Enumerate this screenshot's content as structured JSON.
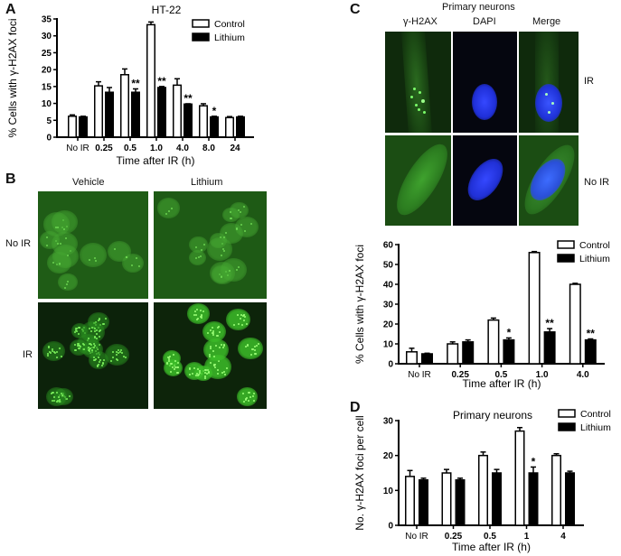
{
  "panels": {
    "A": {
      "letter": "A"
    },
    "B": {
      "letter": "B",
      "col_labels": [
        "Vehicle",
        "Lithium"
      ],
      "row_labels": [
        "No IR",
        "IR"
      ]
    },
    "C": {
      "letter": "C",
      "title": "Primary neurons",
      "col_labels": [
        "γ-H2AX",
        "DAPI",
        "Merge"
      ],
      "row_labels": [
        "IR",
        "No IR"
      ]
    },
    "D": {
      "letter": "D"
    }
  },
  "colors": {
    "control_fill": "#ffffff",
    "lithium_fill": "#000000",
    "gfp_green": "#2e8a1e",
    "dapi_blue": "#1a2fff",
    "micro_bg_green": "#1d5a14",
    "micro_bg_dark": "#0b2108"
  },
  "chart_data": [
    {
      "id": "A",
      "type": "bar",
      "title": "HT-22",
      "xlabel": "Time after IR (h)",
      "ylabel": "% Cells with γ-H2AX foci",
      "ylim": [
        0,
        35
      ],
      "yticks": [
        0,
        5,
        10,
        15,
        20,
        25,
        30,
        35
      ],
      "categories": [
        "No IR",
        "0.25",
        "0.5",
        "1.0",
        "4.0",
        "8.0",
        "24"
      ],
      "series": [
        {
          "name": "Control",
          "values": [
            6.2,
            15.2,
            18.5,
            33.3,
            15.4,
            9.3,
            5.8
          ],
          "errors": [
            0.4,
            1.2,
            1.7,
            0.8,
            1.9,
            0.6,
            0.3
          ]
        },
        {
          "name": "Lithium",
          "values": [
            6.0,
            13.3,
            13.3,
            14.7,
            9.8,
            6.0,
            6.0
          ],
          "errors": [
            0.2,
            1.4,
            1.0,
            0.3,
            0.1,
            0.2,
            0.2
          ]
        }
      ],
      "annotations": [
        "",
        "",
        "**",
        "**",
        "**",
        "*",
        ""
      ],
      "legend": {
        "position": "upper right",
        "entries": [
          "Control",
          "Lithium"
        ]
      },
      "grid": false
    },
    {
      "id": "C",
      "type": "bar",
      "title": "",
      "xlabel": "Time after IR (h)",
      "ylabel": "% Cells with γ-H2AX foci",
      "ylim": [
        0,
        60
      ],
      "yticks": [
        0,
        10,
        20,
        30,
        40,
        50,
        60
      ],
      "categories": [
        "No IR",
        "0.25",
        "0.5",
        "1.0",
        "4.0"
      ],
      "series": [
        {
          "name": "Control",
          "values": [
            6,
            10,
            22,
            56,
            40
          ],
          "errors": [
            1.8,
            1.0,
            1.0,
            0.5,
            0.5
          ]
        },
        {
          "name": "Lithium",
          "values": [
            5,
            11,
            12,
            16,
            12
          ],
          "errors": [
            0.3,
            1.0,
            1.0,
            1.7,
            0.5
          ]
        }
      ],
      "annotations": [
        "",
        "",
        "*",
        "**",
        "**"
      ],
      "legend": {
        "position": "upper right",
        "entries": [
          "Control",
          "Lithium"
        ]
      },
      "grid": false
    },
    {
      "id": "D",
      "type": "bar",
      "title": "Primary neurons",
      "xlabel": "Time after IR (h)",
      "ylabel": "No. γ-H2AX foci per cell",
      "ylim": [
        0,
        30
      ],
      "yticks": [
        0,
        10,
        20,
        30
      ],
      "categories": [
        "No IR",
        "0.25",
        "0.5",
        "1",
        "4"
      ],
      "series": [
        {
          "name": "Control",
          "values": [
            14,
            15,
            20,
            27,
            20
          ],
          "errors": [
            1.7,
            1.0,
            1.0,
            1.0,
            0.5
          ]
        },
        {
          "name": "Lithium",
          "values": [
            13,
            13,
            15,
            15,
            15
          ],
          "errors": [
            0.5,
            0.5,
            1.0,
            1.7,
            0.5
          ]
        }
      ],
      "annotations": [
        "",
        "",
        "",
        "*",
        ""
      ],
      "legend": {
        "position": "upper right",
        "entries": [
          "Control",
          "Lithium"
        ]
      },
      "grid": false
    }
  ]
}
